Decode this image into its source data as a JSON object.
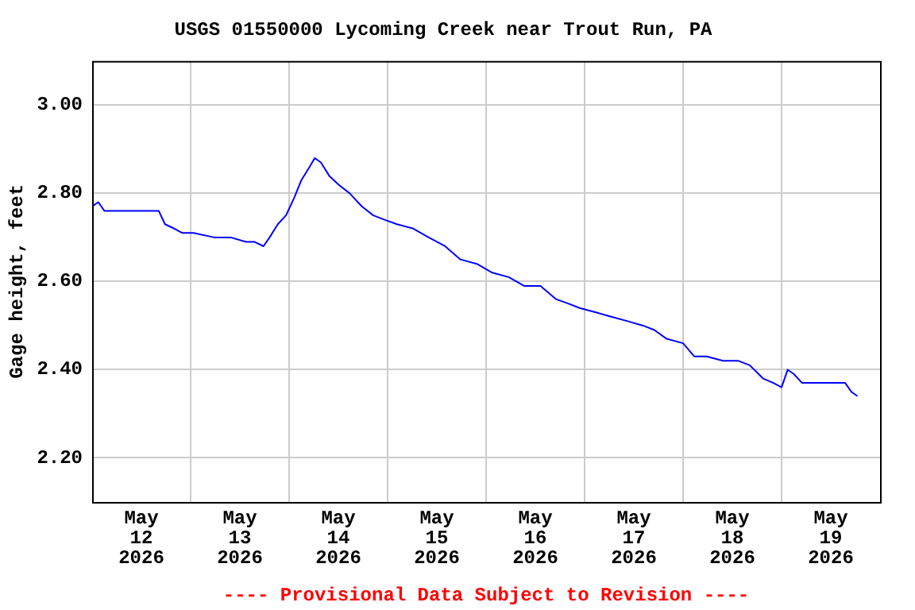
{
  "chart_data": {
    "type": "line",
    "title": "USGS 01550000 Lycoming Creek near Trout Run, PA",
    "ylabel": "Gage height, feet",
    "annotations": [
      "---- Provisional Data Subject to Revision ----"
    ],
    "x": [
      "2026-05-12T00:00",
      "2026-05-12T01:30",
      "2026-05-12T03:00",
      "2026-05-12T05:30",
      "2026-05-12T08:30",
      "2026-05-12T12:30",
      "2026-05-12T16:15",
      "2026-05-12T17:45",
      "2026-05-12T20:00",
      "2026-05-12T22:00",
      "2026-05-13T00:45",
      "2026-05-13T05:45",
      "2026-05-13T09:45",
      "2026-05-13T13:30",
      "2026-05-13T15:30",
      "2026-05-13T17:45",
      "2026-05-13T19:15",
      "2026-05-13T21:15",
      "2026-05-13T23:15",
      "2026-05-14T01:15",
      "2026-05-14T03:00",
      "2026-05-14T05:00",
      "2026-05-14T06:15",
      "2026-05-14T07:45",
      "2026-05-14T09:45",
      "2026-05-14T12:00",
      "2026-05-14T14:45",
      "2026-05-14T17:45",
      "2026-05-14T20:30",
      "2026-05-14T23:15",
      "2026-05-15T02:15",
      "2026-05-15T06:15",
      "2026-05-15T10:00",
      "2026-05-15T14:00",
      "2026-05-15T17:45",
      "2026-05-15T21:45",
      "2026-05-16T01:30",
      "2026-05-16T05:30",
      "2026-05-16T09:15",
      "2026-05-16T13:15",
      "2026-05-16T17:00",
      "2026-05-16T20:00",
      "2026-05-16T22:45",
      "2026-05-17T02:45",
      "2026-05-17T06:30",
      "2026-05-17T10:30",
      "2026-05-17T14:15",
      "2026-05-17T17:00",
      "2026-05-17T20:00",
      "2026-05-18T00:00",
      "2026-05-18T02:45",
      "2026-05-18T05:45",
      "2026-05-18T09:45",
      "2026-05-18T13:30",
      "2026-05-18T16:15",
      "2026-05-18T19:30",
      "2026-05-18T22:00",
      "2026-05-19T00:00",
      "2026-05-19T01:30",
      "2026-05-19T03:00",
      "2026-05-19T05:00",
      "2026-05-19T09:00",
      "2026-05-19T12:45",
      "2026-05-19T15:30",
      "2026-05-19T17:00",
      "2026-05-19T18:30"
    ],
    "series": [
      {
        "color": "#0000ff",
        "values": [
          2.77,
          2.78,
          2.76,
          2.76,
          2.76,
          2.76,
          2.76,
          2.73,
          2.72,
          2.71,
          2.71,
          2.7,
          2.7,
          2.69,
          2.69,
          2.68,
          2.7,
          2.73,
          2.75,
          2.79,
          2.83,
          2.86,
          2.88,
          2.87,
          2.84,
          2.82,
          2.8,
          2.77,
          2.75,
          2.74,
          2.73,
          2.72,
          2.7,
          2.68,
          2.65,
          2.64,
          2.62,
          2.61,
          2.59,
          2.59,
          2.56,
          2.55,
          2.54,
          2.53,
          2.52,
          2.51,
          2.5,
          2.49,
          2.47,
          2.46,
          2.43,
          2.43,
          2.42,
          2.42,
          2.41,
          2.38,
          2.37,
          2.36,
          2.4,
          2.39,
          2.37,
          2.37,
          2.37,
          2.37,
          2.35,
          2.34
        ]
      }
    ],
    "xlim": [
      "2026-05-12T00:00",
      "2026-05-20T00:00"
    ],
    "xticks": [
      {
        "value": "2026-05-12T12:00",
        "label": "May\n12\n2026"
      },
      {
        "value": "2026-05-13T00:00",
        "label": null
      },
      {
        "value": "2026-05-13T12:00",
        "label": "May\n13\n2026"
      },
      {
        "value": "2026-05-14T00:00",
        "label": null
      },
      {
        "value": "2026-05-14T12:00",
        "label": "May\n14\n2026"
      },
      {
        "value": "2026-05-15T00:00",
        "label": null
      },
      {
        "value": "2026-05-15T12:00",
        "label": "May\n15\n2026"
      },
      {
        "value": "2026-05-16T00:00",
        "label": null
      },
      {
        "value": "2026-05-16T12:00",
        "label": "May\n16\n2026"
      },
      {
        "value": "2026-05-17T00:00",
        "label": null
      },
      {
        "value": "2026-05-17T12:00",
        "label": "May\n17\n2026"
      },
      {
        "value": "2026-05-18T00:00",
        "label": null
      },
      {
        "value": "2026-05-18T12:00",
        "label": "May\n18\n2026"
      },
      {
        "value": "2026-05-19T00:00",
        "label": null
      },
      {
        "value": "2026-05-19T12:00",
        "label": "May\n19\n2026"
      }
    ],
    "ylim": [
      2.1,
      3.1
    ],
    "yticks": [
      {
        "value": 2.2,
        "label": "2.20"
      },
      {
        "value": 2.4,
        "label": "2.40"
      },
      {
        "value": 2.6,
        "label": "2.60"
      },
      {
        "value": 2.8,
        "label": "2.80"
      },
      {
        "value": 3.0,
        "label": "3.00"
      }
    ],
    "grid": true,
    "legend": false,
    "marker": "none",
    "line_style": "solid"
  }
}
